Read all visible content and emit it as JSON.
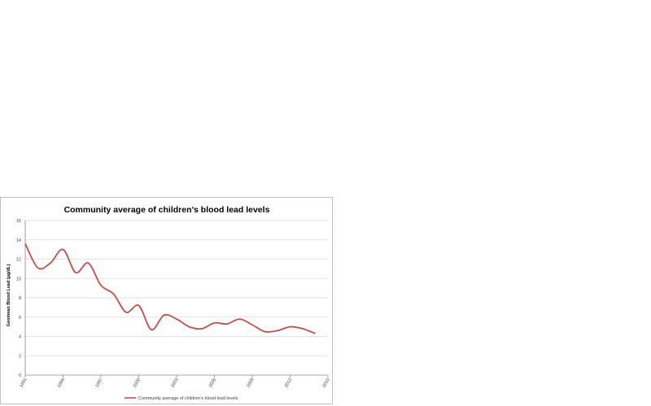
{
  "chart_data": {
    "type": "line",
    "title": "Community average of children’s blood lead levels",
    "xlabel": "",
    "ylabel": "Geomean Blood Lead (μg/dL)",
    "xlim": [
      1991,
      2015
    ],
    "ylim": [
      0,
      16
    ],
    "x_ticks": [
      "1991",
      "1994",
      "1997",
      "2000",
      "2003",
      "2006",
      "2009",
      "2012",
      "2015"
    ],
    "y_ticks": [
      "0",
      "2",
      "4",
      "6",
      "8",
      "10",
      "12",
      "14",
      "16"
    ],
    "grid": true,
    "legend_position": "bottom",
    "series": [
      {
        "name": "Community average of children’s blood lead levels",
        "color": "#c0504d",
        "x": [
          1991,
          1992,
          1993,
          1994,
          1995,
          1996,
          1997,
          1998,
          1999,
          2000,
          2001,
          2002,
          2003,
          2004,
          2005,
          2006,
          2007,
          2008,
          2009,
          2010,
          2011,
          2012,
          2013,
          2014
        ],
        "values": [
          13.6,
          11.1,
          11.6,
          13.0,
          10.6,
          11.6,
          9.3,
          8.4,
          6.5,
          7.2,
          4.7,
          6.2,
          5.8,
          5.0,
          4.8,
          5.4,
          5.3,
          5.8,
          5.2,
          4.5,
          4.6,
          5.0,
          4.8,
          4.3
        ]
      }
    ]
  }
}
